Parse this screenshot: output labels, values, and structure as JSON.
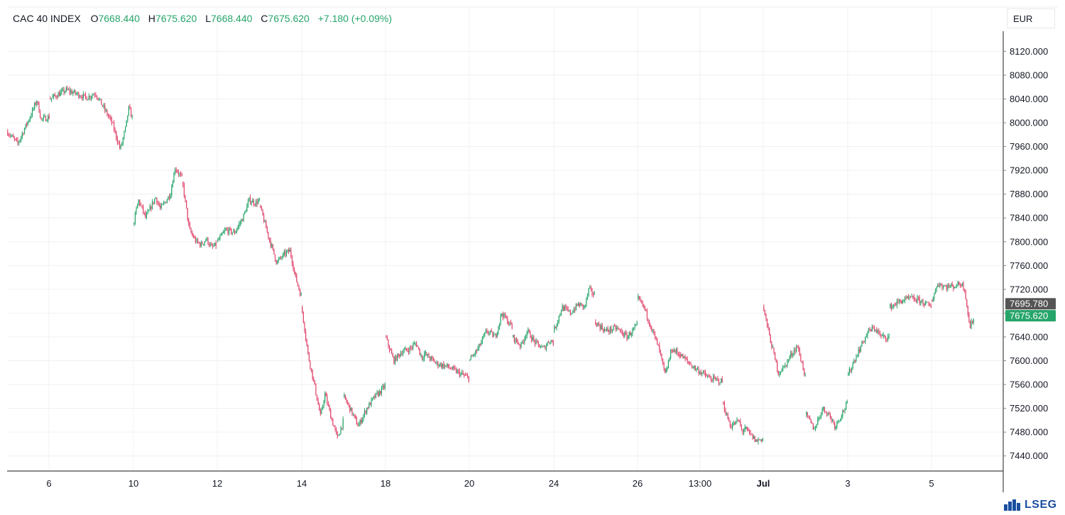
{
  "legend": {
    "symbol": "CAC 40 INDEX",
    "open_label": "O",
    "open_value": "7668.440",
    "high_label": "H",
    "high_value": "7675.620",
    "low_label": "L",
    "low_value": "7668.440",
    "close_label": "C",
    "close_value": "7675.620",
    "change": "+7.180 (+0.09%)"
  },
  "currency": "EUR",
  "brand": "LSEG",
  "colors": {
    "up": "#26a56a",
    "down": "#e0446b",
    "grid": "#f0f0f0",
    "last_price": "#26a56a",
    "crosshair": "#555555"
  },
  "chart_data": {
    "type": "candlestick",
    "title": "CAC 40 INDEX",
    "currency": "EUR",
    "xlabel": "",
    "ylabel": "",
    "ylim": [
      7400,
      8140
    ],
    "y_ticks": [
      "8120.000",
      "8080.000",
      "8040.000",
      "8000.000",
      "7960.000",
      "7920.000",
      "7880.000",
      "7840.000",
      "7800.000",
      "7760.000",
      "7720.000",
      "7680.000",
      "7640.000",
      "7600.000",
      "7560.000",
      "7520.000",
      "7480.000",
      "7440.000"
    ],
    "x_ticks": [
      "6",
      "10",
      "12",
      "14",
      "18",
      "20",
      "24",
      "26",
      "13:00",
      "Jul",
      "3",
      "5"
    ],
    "grid": true,
    "price_labels": [
      {
        "label": "7695.780",
        "value": 7695.78,
        "kind": "crosshair"
      },
      {
        "label": "7675.620",
        "value": 7675.62,
        "kind": "last"
      }
    ],
    "sessions": [
      {
        "session": 1,
        "path": [
          [
            0,
            7985
          ],
          [
            0.25,
            7965
          ],
          [
            0.55,
            8012
          ],
          [
            0.7,
            8038
          ],
          [
            0.8,
            8005
          ],
          [
            1,
            8010
          ]
        ]
      },
      {
        "session": 2,
        "path": [
          [
            0,
            8040
          ],
          [
            0.2,
            8055
          ],
          [
            0.45,
            8042
          ],
          [
            0.55,
            8050
          ],
          [
            0.75,
            8000
          ],
          [
            0.85,
            7955
          ],
          [
            0.92,
            7995
          ],
          [
            0.95,
            8025
          ],
          [
            1,
            8005
          ]
        ]
      },
      {
        "session": 3,
        "path": [
          [
            0,
            7830
          ],
          [
            0.1,
            7870
          ],
          [
            0.25,
            7840
          ],
          [
            0.45,
            7875
          ],
          [
            0.55,
            7855
          ],
          [
            0.75,
            7880
          ],
          [
            0.85,
            7925
          ],
          [
            1,
            7905
          ]
        ]
      },
      {
        "session": 4,
        "path": [
          [
            0,
            7900
          ],
          [
            0.2,
            7820
          ],
          [
            0.4,
            7800
          ],
          [
            0.55,
            7795
          ],
          [
            0.7,
            7805
          ],
          [
            0.85,
            7790
          ],
          [
            1,
            7795
          ]
        ]
      },
      {
        "session": 5,
        "path": [
          [
            0,
            7800
          ],
          [
            0.2,
            7820
          ],
          [
            0.4,
            7815
          ],
          [
            0.6,
            7840
          ],
          [
            0.75,
            7870
          ],
          [
            0.9,
            7865
          ],
          [
            1,
            7870
          ]
        ]
      },
      {
        "session": 6,
        "path": [
          [
            0,
            7860
          ],
          [
            0.2,
            7810
          ],
          [
            0.4,
            7765
          ],
          [
            0.6,
            7780
          ],
          [
            0.72,
            7785
          ],
          [
            0.85,
            7740
          ],
          [
            1,
            7705
          ]
        ]
      },
      {
        "session": 7,
        "path": [
          [
            0,
            7690
          ],
          [
            0.15,
            7610
          ],
          [
            0.3,
            7560
          ],
          [
            0.45,
            7505
          ],
          [
            0.55,
            7545
          ],
          [
            0.7,
            7505
          ],
          [
            0.85,
            7470
          ],
          [
            1,
            7500
          ]
        ]
      },
      {
        "session": 8,
        "path": [
          [
            0,
            7540
          ],
          [
            0.15,
            7520
          ],
          [
            0.35,
            7490
          ],
          [
            0.55,
            7520
          ],
          [
            0.75,
            7540
          ],
          [
            0.9,
            7550
          ],
          [
            1,
            7560
          ]
        ]
      },
      {
        "session": 9,
        "path": [
          [
            0,
            7640
          ],
          [
            0.2,
            7600
          ],
          [
            0.4,
            7615
          ],
          [
            0.6,
            7620
          ],
          [
            0.75,
            7630
          ],
          [
            0.9,
            7605
          ],
          [
            1,
            7615
          ]
        ]
      },
      {
        "session": 10,
        "path": [
          [
            0,
            7610
          ],
          [
            0.25,
            7595
          ],
          [
            0.5,
            7590
          ],
          [
            0.75,
            7580
          ],
          [
            1,
            7570
          ]
        ]
      },
      {
        "session": 11,
        "path": [
          [
            0,
            7600
          ],
          [
            0.2,
            7620
          ],
          [
            0.4,
            7650
          ],
          [
            0.6,
            7640
          ],
          [
            0.75,
            7680
          ],
          [
            0.9,
            7665
          ],
          [
            1,
            7655
          ]
        ]
      },
      {
        "session": 12,
        "path": [
          [
            0,
            7640
          ],
          [
            0.2,
            7625
          ],
          [
            0.35,
            7650
          ],
          [
            0.55,
            7630
          ],
          [
            0.75,
            7620
          ],
          [
            0.9,
            7635
          ],
          [
            1,
            7630
          ]
        ]
      },
      {
        "session": 13,
        "path": [
          [
            0,
            7650
          ],
          [
            0.2,
            7690
          ],
          [
            0.4,
            7680
          ],
          [
            0.6,
            7695
          ],
          [
            0.75,
            7690
          ],
          [
            0.85,
            7720
          ],
          [
            1,
            7710
          ]
        ]
      },
      {
        "session": 14,
        "path": [
          [
            0,
            7665
          ],
          [
            0.25,
            7650
          ],
          [
            0.5,
            7655
          ],
          [
            0.75,
            7640
          ],
          [
            1,
            7660
          ]
        ]
      },
      {
        "session": 15,
        "path": [
          [
            0,
            7705
          ],
          [
            0.15,
            7690
          ],
          [
            0.35,
            7650
          ],
          [
            0.5,
            7620
          ],
          [
            0.65,
            7575
          ],
          [
            0.8,
            7620
          ],
          [
            1,
            7610
          ]
        ]
      },
      {
        "session": 16,
        "path": [
          [
            0,
            7610
          ],
          [
            0.3,
            7590
          ],
          [
            0.5,
            7580
          ],
          [
            0.7,
            7570
          ],
          [
            1,
            7565
          ]
        ]
      },
      {
        "session": 17,
        "path": [
          [
            0,
            7530
          ],
          [
            0.15,
            7510
          ],
          [
            0.35,
            7490
          ],
          [
            0.55,
            7495
          ],
          [
            0.7,
            7500
          ],
          [
            0.85,
            7480
          ],
          [
            1,
            7490
          ]
        ]
      },
      {
        "session": 18,
        "path": [
          [
            0,
            7485
          ],
          [
            0.3,
            7475
          ],
          [
            0.6,
            7465
          ],
          [
            1,
            7470
          ]
        ]
      },
      {
        "session": 19,
        "path": [
          [
            0,
            7690
          ],
          [
            0.15,
            7640
          ],
          [
            0.35,
            7580
          ],
          [
            0.5,
            7590
          ],
          [
            0.65,
            7610
          ],
          [
            0.8,
            7625
          ],
          [
            1,
            7570
          ]
        ]
      },
      {
        "session": 20,
        "path": [
          [
            0,
            7510
          ],
          [
            0.2,
            7485
          ],
          [
            0.4,
            7520
          ],
          [
            0.55,
            7510
          ],
          [
            0.7,
            7490
          ],
          [
            0.85,
            7510
          ],
          [
            1,
            7530
          ]
        ]
      },
      {
        "session": 21,
        "path": [
          [
            0,
            7575
          ],
          [
            0.15,
            7600
          ],
          [
            0.35,
            7630
          ],
          [
            0.5,
            7650
          ],
          [
            0.65,
            7655
          ],
          [
            0.8,
            7640
          ],
          [
            1,
            7640
          ]
        ]
      },
      {
        "session": 22,
        "path": [
          [
            0,
            7690
          ],
          [
            0.25,
            7700
          ],
          [
            0.5,
            7705
          ],
          [
            0.75,
            7700
          ],
          [
            1,
            7690
          ]
        ]
      },
      {
        "session": 23,
        "path": [
          [
            0,
            7700
          ],
          [
            0.15,
            7730
          ],
          [
            0.3,
            7725
          ],
          [
            0.5,
            7725
          ],
          [
            0.7,
            7730
          ],
          [
            0.78,
            7720
          ],
          [
            0.9,
            7655
          ],
          [
            1,
            7675
          ]
        ]
      }
    ]
  }
}
